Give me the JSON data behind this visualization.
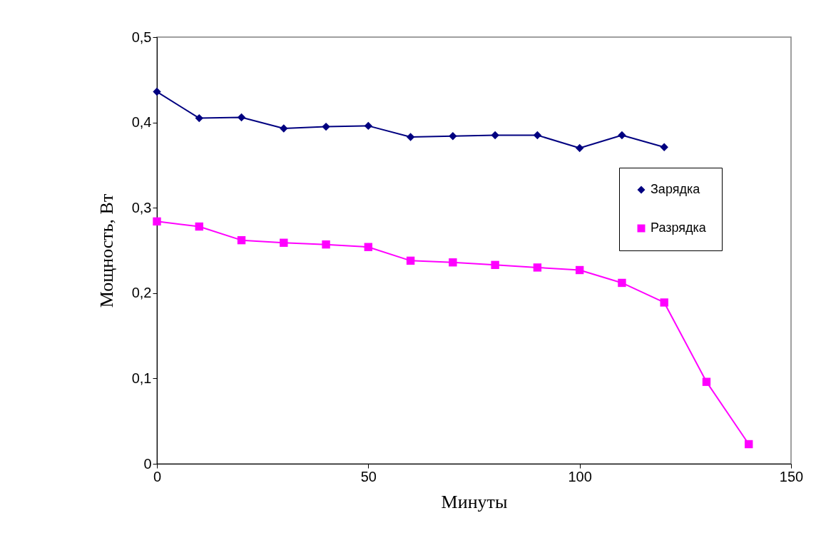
{
  "chart_data": {
    "type": "line",
    "xlabel": "Минуты",
    "ylabel": "Мощность, Вт",
    "xlim": [
      0,
      150
    ],
    "xticks": [
      0,
      50,
      100,
      150
    ],
    "ylim": [
      0,
      0.5
    ],
    "yticks": [
      0,
      {
        "value": 0.1,
        "label": "0,1"
      },
      {
        "value": 0.2,
        "label": "0,2"
      },
      {
        "value": 0.3,
        "label": "0,3"
      },
      {
        "value": 0.4,
        "label": "0,4"
      },
      {
        "value": 0.5,
        "label": "0,5"
      }
    ],
    "grid": false,
    "legend": "right",
    "series": [
      {
        "name": "Зарядка",
        "color": "#000080",
        "marker": "diamond",
        "x": [
          0,
          10,
          20,
          30,
          40,
          50,
          60,
          70,
          80,
          90,
          100,
          110,
          120
        ],
        "values": [
          0.436,
          0.405,
          0.406,
          0.393,
          0.395,
          0.396,
          0.383,
          0.384,
          0.385,
          0.385,
          0.37,
          0.385,
          0.371
        ]
      },
      {
        "name": "Разрядка",
        "color": "#ff00ff",
        "marker": "square",
        "x": [
          0,
          10,
          20,
          30,
          40,
          50,
          60,
          70,
          80,
          90,
          100,
          110,
          120,
          130,
          140
        ],
        "values": [
          0.284,
          0.278,
          0.262,
          0.259,
          0.257,
          0.254,
          0.238,
          0.236,
          0.233,
          0.23,
          0.227,
          0.212,
          0.189,
          0.096,
          0.023
        ]
      }
    ]
  }
}
